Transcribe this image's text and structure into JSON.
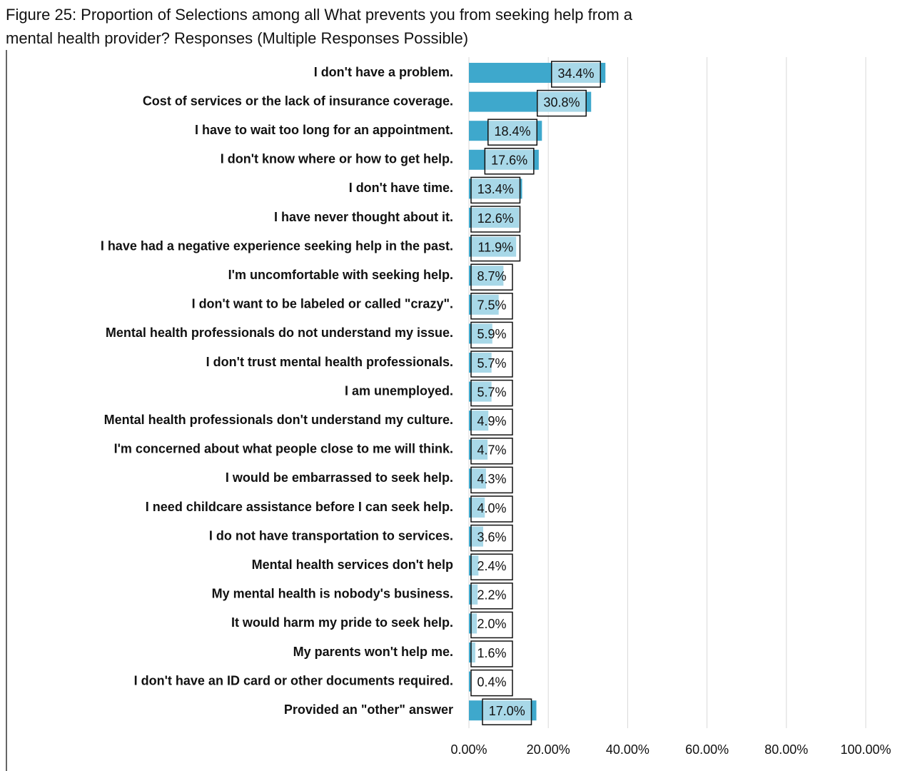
{
  "chart_data": {
    "type": "bar",
    "orientation": "horizontal",
    "title": [
      "Figure 25: Proportion of Selections among all What prevents you from seeking help from a",
      "mental health provider? Responses (Multiple Responses Possible)"
    ],
    "categories": [
      "I don't have a problem.",
      "Cost of services or the lack of insurance coverage.",
      "I have to wait too long for an appointment.",
      "I don't know where or how to get help.",
      "I don't have time.",
      "I have never thought about it.",
      "I have had a negative experience seeking help in the past.",
      "I'm uncomfortable with seeking help.",
      "I don't want to be labeled or called \"crazy\".",
      "Mental health professionals do not understand my issue.",
      "I don't trust mental health professionals.",
      "I am unemployed.",
      "Mental health professionals don't understand my culture.",
      "I'm concerned about what people close to me will think.",
      "I would be embarrassed to seek help.",
      "I need childcare assistance before I can seek help.",
      "I do not have transportation to services.",
      "Mental health services don't help",
      "My mental health is nobody's business.",
      "It would harm my pride to seek help.",
      "My parents won't help me.",
      "I don't have an ID card or other documents required.",
      "Provided an \"other\" answer"
    ],
    "values": [
      34.4,
      30.8,
      18.4,
      17.6,
      13.4,
      12.6,
      11.9,
      8.7,
      7.5,
      5.9,
      5.7,
      5.7,
      4.9,
      4.7,
      4.3,
      4.0,
      3.6,
      2.4,
      2.2,
      2.0,
      1.6,
      0.4,
      17.0
    ],
    "value_labels": [
      "34.4%",
      "30.8%",
      "18.4%",
      "17.6%",
      "13.4%",
      "12.6%",
      "11.9%",
      "8.7%",
      "7.5%",
      "5.9%",
      "5.7%",
      "5.7%",
      "4.9%",
      "4.7%",
      "4.3%",
      "4.0%",
      "3.6%",
      "2.4%",
      "2.2%",
      "2.0%",
      "1.6%",
      "0.4%",
      "17.0%"
    ],
    "color": "#3ea8cc",
    "xlim": [
      0,
      100
    ],
    "xticks": [
      {
        "value": 0,
        "label": "0.00%"
      },
      {
        "value": 20,
        "label": "20.00%"
      },
      {
        "value": 40,
        "label": "40.00%"
      },
      {
        "value": 60,
        "label": "60.00%"
      },
      {
        "value": 80,
        "label": "80.00%"
      },
      {
        "value": 100,
        "label": "100.00%"
      }
    ],
    "grid": true
  }
}
